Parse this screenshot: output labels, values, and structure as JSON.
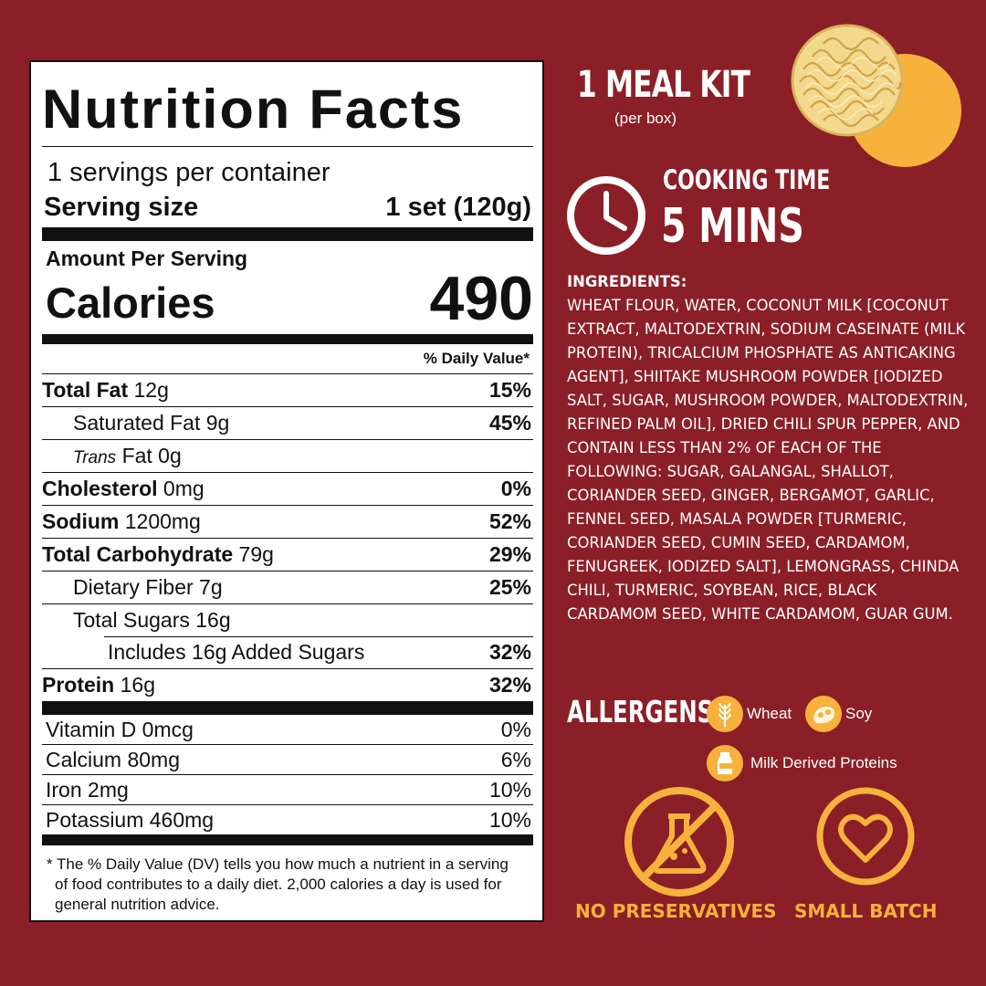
{
  "nutrition": {
    "title": "Nutrition Facts",
    "servings": "1 servings per container",
    "serving_size_label": "Serving size",
    "serving_size_value": "1 set (120g)",
    "amount_per_serving": "Amount Per Serving",
    "calories_label": "Calories",
    "calories_value": "490",
    "daily_value_header": "% Daily Value*",
    "rows": [
      {
        "name": "Total Fat",
        "amount": "12g",
        "pct": "15%"
      },
      {
        "name": "Saturated Fat",
        "amount": "9g",
        "pct": "45%"
      },
      {
        "name": "Trans",
        "amount": "Fat 0g",
        "pct": ""
      },
      {
        "name": "Cholesterol",
        "amount": "0mg",
        "pct": "0%"
      },
      {
        "name": "Sodium",
        "amount": "1200mg",
        "pct": "52%"
      },
      {
        "name": "Total Carbohydrate",
        "amount": "79g",
        "pct": "29%"
      },
      {
        "name": "Dietary Fiber",
        "amount": "7g",
        "pct": "25%"
      },
      {
        "name": "Total Sugars",
        "amount": "16g",
        "pct": ""
      },
      {
        "name": "Includes 16g Added Sugars",
        "amount": "",
        "pct": "32%"
      },
      {
        "name": "Protein",
        "amount": "16g",
        "pct": "32%"
      }
    ],
    "vitamins": [
      {
        "name": "Vitamin D 0mcg",
        "pct": "0%"
      },
      {
        "name": "Calcium 80mg",
        "pct": "6%"
      },
      {
        "name": "Iron 2mg",
        "pct": "10%"
      },
      {
        "name": "Potassium 460mg",
        "pct": "10%"
      }
    ],
    "footnote": "* The % Daily Value (DV) tells you how much a nutrient in a serving of food contributes to a daily diet. 2,000 calories a day is used for general nutrition advice."
  },
  "kit": {
    "title": "1 MEAL KIT",
    "subtitle": "(per box)",
    "noodle_icon": "noodle-block-image"
  },
  "cooking": {
    "label": "COOKING TIME",
    "value": "5 MINS",
    "icon": "clock-icon"
  },
  "ingredients": {
    "heading": "INGREDIENTS:",
    "text": "WHEAT FLOUR, WATER, COCONUT MILK [COCONUT EXTRACT, MALTODEXTRIN, SODIUM CASEINATE (MILK PROTEIN), TRICALCIUM PHOSPHATE AS ANTICAKING AGENT], SHIITAKE MUSHROOM POWDER [IODIZED SALT, SUGAR, MUSHROOM POWDER, MALTODEXTRIN, REFINED PALM OIL], DRIED CHILI SPUR PEPPER, AND CONTAIN LESS THAN 2% OF EACH OF THE FOLLOWING: SUGAR, GALANGAL, SHALLOT, CORIANDER SEED, GINGER, BERGAMOT, GARLIC, FENNEL SEED, MASALA POWDER [TURMERIC, CORIANDER SEED, CUMIN SEED, CARDAMOM, FENUGREEK, IODIZED SALT], LEMONGRASS, CHINDA CHILI, TURMERIC, SOYBEAN, RICE, BLACK CARDAMOM SEED, WHITE CARDAMOM, GUAR GUM."
  },
  "allergens": {
    "heading": "ALLERGENS",
    "items": [
      {
        "label": "Wheat",
        "icon": "wheat-icon"
      },
      {
        "label": "Soy",
        "icon": "soybean-icon"
      },
      {
        "label": "Milk Derived Proteins",
        "icon": "milk-bottle-icon"
      }
    ]
  },
  "badges": [
    {
      "label": "NO PRESERVATIVES",
      "icon": "no-chemicals-icon"
    },
    {
      "label": "SMALL BATCH",
      "icon": "heart-icon"
    }
  ],
  "colors": {
    "background": "#8b1f27",
    "accent": "#f6b23c",
    "text": "#ffffff"
  }
}
